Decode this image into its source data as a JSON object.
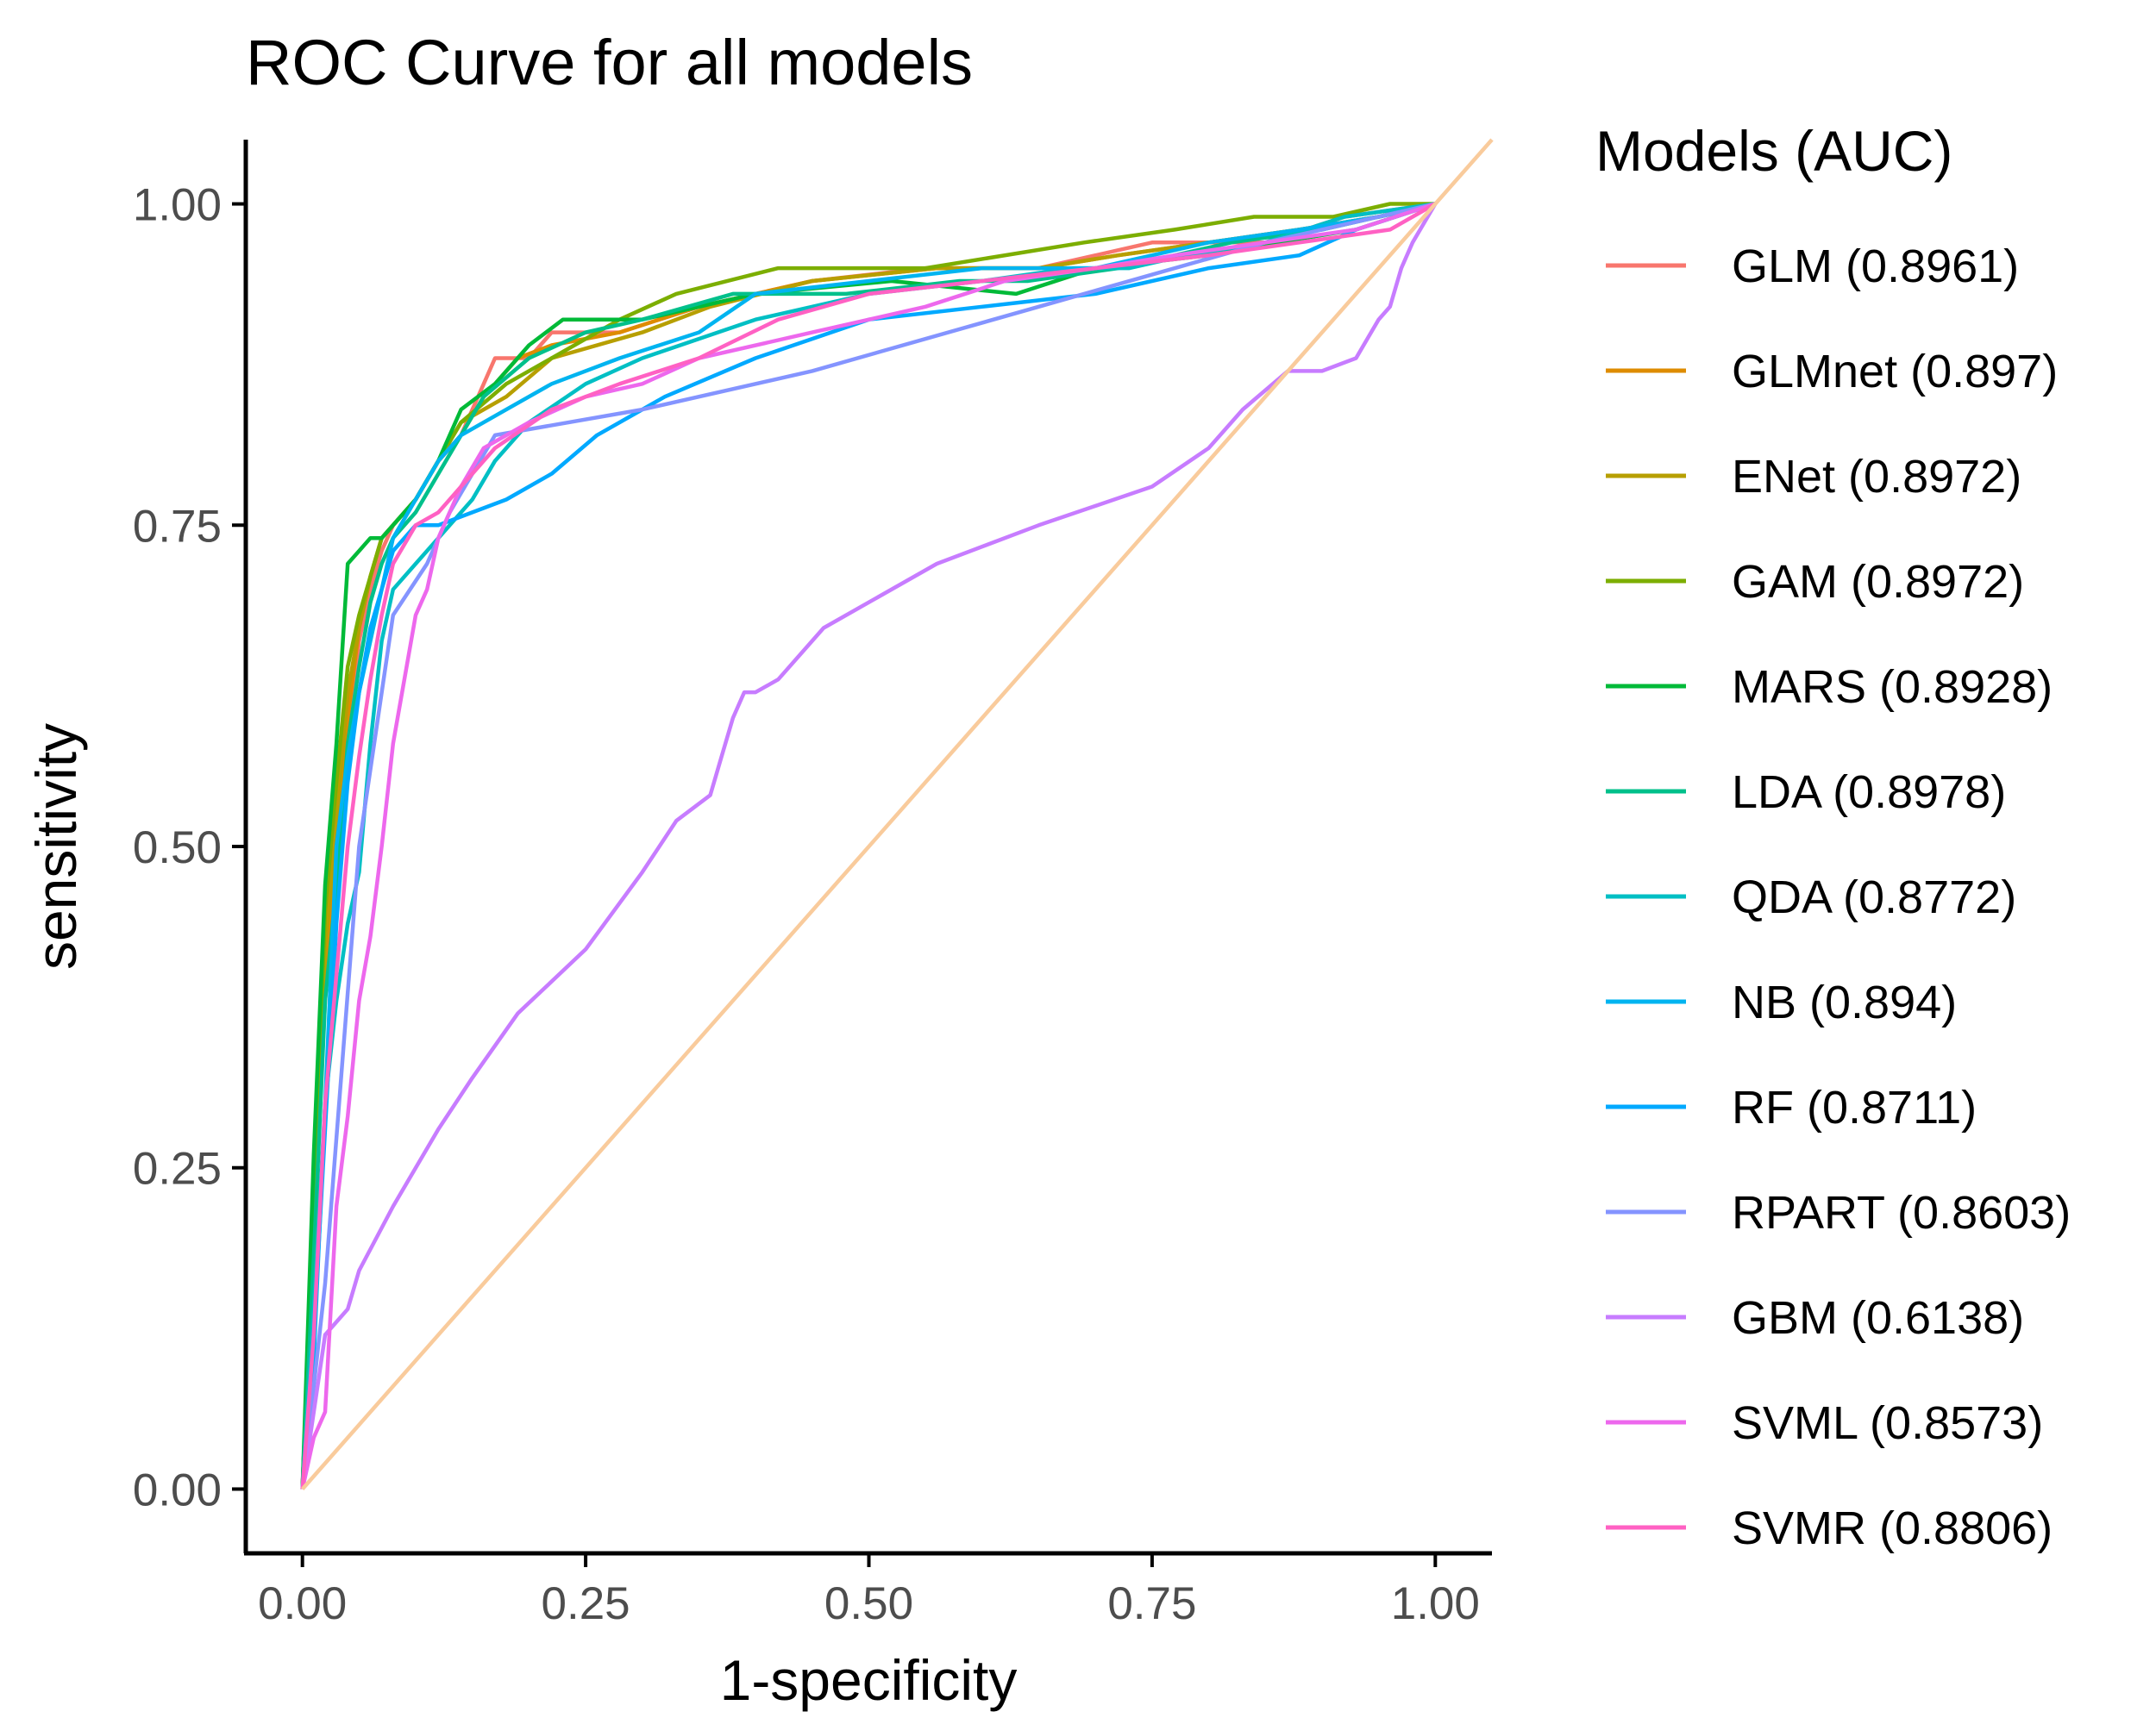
{
  "chart_data": {
    "type": "line",
    "title": "ROC Curve for all models",
    "xlabel": "1-specificity",
    "ylabel": "sensitivity",
    "xlim": [
      -0.05,
      1.05
    ],
    "ylim": [
      -0.05,
      1.05
    ],
    "x_ticks": [
      "0.00",
      "0.25",
      "0.50",
      "0.75",
      "1.00"
    ],
    "y_ticks": [
      "0.00",
      "0.25",
      "0.50",
      "0.75",
      "1.00"
    ],
    "grid": false,
    "legend": {
      "title": "Models (AUC)",
      "position": "right"
    },
    "reference_line": {
      "x": [
        0,
        1.05
      ],
      "y": [
        0,
        1.05
      ],
      "color": "#F9CB9C"
    },
    "series": [
      {
        "name": "GLM (0.8961)",
        "color": "#F8766D",
        "x": [
          0,
          0.01,
          0.02,
          0.03,
          0.04,
          0.05,
          0.06,
          0.07,
          0.08,
          0.1,
          0.12,
          0.14,
          0.15,
          0.16,
          0.17,
          0.2,
          0.22,
          0.28,
          0.35,
          0.45,
          0.55,
          0.65,
          0.7,
          0.75,
          0.85,
          0.92,
          1.0
        ],
        "y": [
          0,
          0.2,
          0.38,
          0.48,
          0.58,
          0.66,
          0.7,
          0.73,
          0.75,
          0.77,
          0.8,
          0.82,
          0.84,
          0.86,
          0.88,
          0.88,
          0.9,
          0.9,
          0.92,
          0.94,
          0.95,
          0.95,
          0.96,
          0.97,
          0.97,
          0.99,
          1.0
        ]
      },
      {
        "name": "GLMnet (0.897)",
        "color": "#DE8C00",
        "x": [
          0,
          0.01,
          0.02,
          0.03,
          0.04,
          0.05,
          0.06,
          0.07,
          0.08,
          0.1,
          0.12,
          0.14,
          0.16,
          0.19,
          0.22,
          0.28,
          0.35,
          0.45,
          0.56,
          0.65,
          0.72,
          0.8,
          0.88,
          0.95,
          1.0
        ],
        "y": [
          0,
          0.22,
          0.4,
          0.5,
          0.6,
          0.67,
          0.71,
          0.74,
          0.75,
          0.77,
          0.8,
          0.82,
          0.85,
          0.88,
          0.89,
          0.9,
          0.92,
          0.94,
          0.95,
          0.95,
          0.96,
          0.97,
          0.98,
          0.99,
          1.0
        ]
      },
      {
        "name": "ENet (0.8972)",
        "color": "#B79F00",
        "x": [
          0,
          0.01,
          0.02,
          0.03,
          0.04,
          0.05,
          0.06,
          0.07,
          0.08,
          0.1,
          0.12,
          0.14,
          0.18,
          0.22,
          0.3,
          0.36,
          0.45,
          0.56,
          0.65,
          0.72,
          0.8,
          0.88,
          0.95,
          1.0
        ],
        "y": [
          0,
          0.22,
          0.42,
          0.52,
          0.62,
          0.67,
          0.71,
          0.74,
          0.75,
          0.77,
          0.8,
          0.83,
          0.85,
          0.88,
          0.9,
          0.92,
          0.94,
          0.95,
          0.95,
          0.96,
          0.97,
          0.98,
          0.99,
          1.0
        ]
      },
      {
        "name": "GAM (0.8972)",
        "color": "#7CAE00",
        "x": [
          0,
          0.01,
          0.02,
          0.03,
          0.04,
          0.05,
          0.06,
          0.07,
          0.08,
          0.1,
          0.12,
          0.14,
          0.18,
          0.22,
          0.28,
          0.33,
          0.42,
          0.55,
          0.69,
          0.77,
          0.84,
          0.91,
          0.96,
          1.0
        ],
        "y": [
          0,
          0.22,
          0.45,
          0.55,
          0.64,
          0.68,
          0.71,
          0.74,
          0.75,
          0.77,
          0.8,
          0.83,
          0.86,
          0.88,
          0.91,
          0.93,
          0.95,
          0.95,
          0.97,
          0.98,
          0.99,
          0.99,
          1.0,
          1.0
        ]
      },
      {
        "name": "MARS (0.8928)",
        "color": "#00BA38",
        "x": [
          0,
          0.01,
          0.02,
          0.03,
          0.04,
          0.05,
          0.06,
          0.07,
          0.08,
          0.1,
          0.12,
          0.14,
          0.17,
          0.2,
          0.23,
          0.3,
          0.4,
          0.52,
          0.63,
          0.7,
          0.8,
          0.86,
          0.93,
          1.0
        ],
        "y": [
          0,
          0.26,
          0.47,
          0.58,
          0.72,
          0.73,
          0.74,
          0.74,
          0.75,
          0.77,
          0.8,
          0.84,
          0.86,
          0.89,
          0.91,
          0.91,
          0.93,
          0.94,
          0.93,
          0.95,
          0.96,
          0.97,
          0.98,
          1.0
        ]
      },
      {
        "name": "LDA (0.8978)",
        "color": "#00C08B",
        "x": [
          0,
          0.01,
          0.02,
          0.03,
          0.04,
          0.05,
          0.06,
          0.07,
          0.08,
          0.1,
          0.12,
          0.14,
          0.16,
          0.2,
          0.25,
          0.3,
          0.38,
          0.48,
          0.58,
          0.64,
          0.72,
          0.82,
          0.9,
          0.95,
          1.0
        ],
        "y": [
          0,
          0.18,
          0.38,
          0.47,
          0.58,
          0.64,
          0.69,
          0.72,
          0.74,
          0.76,
          0.79,
          0.82,
          0.85,
          0.88,
          0.9,
          0.91,
          0.93,
          0.93,
          0.94,
          0.94,
          0.95,
          0.97,
          0.98,
          0.99,
          1.0
        ]
      },
      {
        "name": "QDA (0.8772)",
        "color": "#00BFC4",
        "x": [
          0,
          0.01,
          0.02,
          0.03,
          0.04,
          0.05,
          0.06,
          0.07,
          0.08,
          0.1,
          0.12,
          0.13,
          0.15,
          0.17,
          0.2,
          0.25,
          0.3,
          0.4,
          0.5,
          0.6,
          0.68,
          0.73,
          0.78,
          0.85,
          0.92,
          1.0
        ],
        "y": [
          0,
          0.14,
          0.3,
          0.38,
          0.44,
          0.48,
          0.58,
          0.66,
          0.7,
          0.72,
          0.74,
          0.75,
          0.77,
          0.8,
          0.83,
          0.86,
          0.88,
          0.91,
          0.93,
          0.94,
          0.95,
          0.95,
          0.96,
          0.97,
          0.99,
          1.0
        ]
      },
      {
        "name": "NB (0.894)",
        "color": "#00B4F0",
        "x": [
          0,
          0.01,
          0.02,
          0.03,
          0.04,
          0.05,
          0.06,
          0.07,
          0.08,
          0.1,
          0.12,
          0.14,
          0.18,
          0.22,
          0.28,
          0.35,
          0.4,
          0.5,
          0.6,
          0.7,
          0.8,
          0.88,
          0.95,
          1.0
        ],
        "y": [
          0,
          0.1,
          0.3,
          0.5,
          0.57,
          0.62,
          0.66,
          0.7,
          0.74,
          0.77,
          0.8,
          0.82,
          0.84,
          0.86,
          0.88,
          0.9,
          0.93,
          0.94,
          0.95,
          0.95,
          0.97,
          0.98,
          0.99,
          1.0
        ]
      },
      {
        "name": "RF (0.8711)",
        "color": "#00A9FF",
        "x": [
          0,
          0.01,
          0.02,
          0.03,
          0.04,
          0.05,
          0.06,
          0.07,
          0.08,
          0.1,
          0.12,
          0.15,
          0.18,
          0.22,
          0.26,
          0.32,
          0.4,
          0.5,
          0.6,
          0.7,
          0.8,
          0.88,
          0.93,
          1.0
        ],
        "y": [
          0,
          0.12,
          0.28,
          0.44,
          0.55,
          0.62,
          0.67,
          0.7,
          0.73,
          0.75,
          0.75,
          0.76,
          0.77,
          0.79,
          0.82,
          0.85,
          0.88,
          0.91,
          0.92,
          0.93,
          0.95,
          0.96,
          0.98,
          1.0
        ]
      },
      {
        "name": "RPART (0.8603)",
        "color": "#8494FF",
        "x": [
          0,
          0.02,
          0.05,
          0.08,
          0.11,
          0.13,
          0.15,
          0.17,
          0.3,
          0.45,
          0.65,
          0.85,
          1.0
        ],
        "y": [
          0,
          0.16,
          0.5,
          0.68,
          0.72,
          0.76,
          0.79,
          0.82,
          0.84,
          0.87,
          0.92,
          0.97,
          1.0
        ]
      },
      {
        "name": "GBM (0.6138)",
        "color": "#C77CFF",
        "x": [
          0,
          0.02,
          0.04,
          0.05,
          0.08,
          0.12,
          0.15,
          0.19,
          0.25,
          0.3,
          0.33,
          0.36,
          0.37,
          0.38,
          0.39,
          0.4,
          0.42,
          0.46,
          0.5,
          0.56,
          0.65,
          0.75,
          0.8,
          0.83,
          0.87,
          0.9,
          0.93,
          0.95,
          0.96,
          0.97,
          0.98,
          1.0
        ],
        "y": [
          0,
          0.12,
          0.14,
          0.17,
          0.22,
          0.28,
          0.32,
          0.37,
          0.42,
          0.48,
          0.52,
          0.54,
          0.57,
          0.6,
          0.62,
          0.62,
          0.63,
          0.67,
          0.69,
          0.72,
          0.75,
          0.78,
          0.81,
          0.84,
          0.87,
          0.87,
          0.88,
          0.91,
          0.92,
          0.95,
          0.97,
          1.0
        ]
      },
      {
        "name": "SVML (0.8573)",
        "color": "#ED68ED",
        "x": [
          0,
          0.01,
          0.02,
          0.03,
          0.04,
          0.05,
          0.06,
          0.07,
          0.08,
          0.09,
          0.1,
          0.11,
          0.12,
          0.14,
          0.16,
          0.2,
          0.25,
          0.3,
          0.35,
          0.45,
          0.55,
          0.62,
          0.7,
          0.77,
          0.85,
          0.93,
          1.0
        ],
        "y": [
          0,
          0.04,
          0.06,
          0.22,
          0.29,
          0.38,
          0.43,
          0.5,
          0.58,
          0.63,
          0.68,
          0.7,
          0.74,
          0.78,
          0.81,
          0.83,
          0.85,
          0.86,
          0.88,
          0.9,
          0.92,
          0.94,
          0.95,
          0.96,
          0.97,
          0.98,
          1.0
        ]
      },
      {
        "name": "SVMR (0.8806)",
        "color": "#FF61C3",
        "x": [
          0,
          0.01,
          0.02,
          0.03,
          0.04,
          0.05,
          0.06,
          0.07,
          0.08,
          0.1,
          0.12,
          0.14,
          0.17,
          0.22,
          0.28,
          0.35,
          0.42,
          0.5,
          0.6,
          0.7,
          0.8,
          0.88,
          0.96,
          1.0
        ],
        "y": [
          0,
          0.12,
          0.3,
          0.4,
          0.5,
          0.57,
          0.63,
          0.68,
          0.72,
          0.75,
          0.76,
          0.78,
          0.81,
          0.84,
          0.86,
          0.88,
          0.91,
          0.93,
          0.94,
          0.95,
          0.96,
          0.97,
          0.98,
          1.0
        ]
      }
    ]
  }
}
